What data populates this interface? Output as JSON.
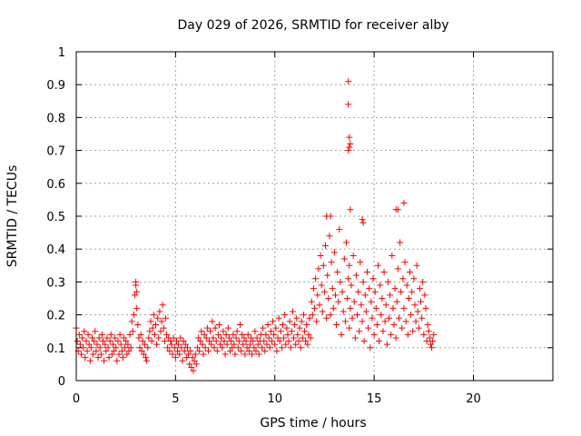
{
  "chart_data": {
    "type": "scatter",
    "title": "Day 029 of 2026, SRMTID for receiver alby",
    "xlabel": "GPS time / hours",
    "ylabel": "SRMTID / TECUs",
    "xlim": [
      0,
      24
    ],
    "ylim": [
      0,
      1
    ],
    "xticks": [
      0,
      5,
      10,
      15,
      20
    ],
    "yticks": [
      0,
      0.1,
      0.2,
      0.3,
      0.4,
      0.5,
      0.6,
      0.7,
      0.8,
      0.9,
      1
    ],
    "grid": true,
    "marker": "+",
    "color": "#ff0000",
    "series": [
      {
        "name": "alby",
        "x": [
          0.0,
          0.05,
          0.1,
          0.15,
          0.2,
          0.25,
          0.3,
          0.35,
          0.4,
          0.45,
          0.5,
          0.55,
          0.6,
          0.65,
          0.7,
          0.75,
          0.8,
          0.85,
          0.9,
          0.95,
          1.0,
          1.05,
          1.1,
          1.15,
          1.2,
          1.25,
          1.3,
          1.35,
          1.4,
          1.45,
          1.5,
          1.55,
          1.6,
          1.65,
          1.7,
          1.75,
          1.8,
          1.85,
          1.9,
          1.95,
          2.0,
          2.05,
          2.1,
          2.15,
          2.2,
          2.25,
          2.3,
          2.35,
          2.4,
          2.45,
          2.5,
          2.55,
          2.6,
          2.65,
          2.7,
          2.75,
          2.8,
          2.85,
          2.9,
          2.95,
          3.0,
          3.0,
          3.05,
          3.05,
          3.1,
          3.15,
          3.2,
          3.25,
          3.3,
          3.35,
          3.4,
          3.45,
          3.5,
          3.55,
          3.6,
          3.65,
          3.7,
          3.75,
          3.8,
          3.85,
          3.9,
          3.95,
          4.0,
          4.05,
          4.1,
          4.15,
          4.2,
          4.25,
          4.3,
          4.35,
          4.4,
          4.45,
          4.5,
          4.55,
          4.6,
          4.65,
          4.7,
          4.75,
          4.8,
          4.85,
          4.9,
          4.95,
          5.0,
          5.05,
          5.1,
          5.15,
          5.2,
          5.25,
          5.3,
          5.35,
          5.4,
          5.45,
          5.5,
          5.55,
          5.6,
          5.65,
          5.7,
          5.75,
          5.8,
          5.85,
          5.9,
          5.95,
          6.0,
          6.05,
          6.1,
          6.15,
          6.2,
          6.25,
          6.3,
          6.35,
          6.4,
          6.45,
          6.5,
          6.55,
          6.6,
          6.65,
          6.7,
          6.75,
          6.8,
          6.85,
          6.9,
          6.95,
          7.0,
          7.05,
          7.1,
          7.15,
          7.2,
          7.25,
          7.3,
          7.35,
          7.4,
          7.45,
          7.5,
          7.55,
          7.6,
          7.65,
          7.7,
          7.75,
          7.8,
          7.85,
          7.9,
          7.95,
          8.0,
          8.05,
          8.1,
          8.15,
          8.2,
          8.25,
          8.3,
          8.35,
          8.4,
          8.45,
          8.5,
          8.55,
          8.6,
          8.65,
          8.7,
          8.75,
          8.8,
          8.85,
          8.9,
          8.95,
          9.0,
          9.05,
          9.1,
          9.15,
          9.2,
          9.25,
          9.3,
          9.35,
          9.4,
          9.45,
          9.5,
          9.55,
          9.6,
          9.65,
          9.7,
          9.75,
          9.8,
          9.85,
          9.9,
          9.95,
          10.0,
          10.05,
          10.1,
          10.15,
          10.2,
          10.25,
          10.3,
          10.35,
          10.4,
          10.45,
          10.5,
          10.55,
          10.6,
          10.65,
          10.7,
          10.75,
          10.8,
          10.85,
          10.9,
          10.95,
          11.0,
          11.05,
          11.1,
          11.15,
          11.2,
          11.25,
          11.3,
          11.35,
          11.4,
          11.45,
          11.5,
          11.55,
          11.6,
          11.65,
          11.7,
          11.75,
          11.8,
          11.85,
          11.9,
          11.95,
          12.0,
          12.05,
          12.1,
          12.15,
          12.2,
          12.25,
          12.3,
          12.35,
          12.4,
          12.45,
          12.5,
          12.55,
          12.6,
          12.65,
          12.7,
          12.75,
          12.8,
          12.85,
          12.9,
          12.95,
          13.0,
          13.05,
          13.1,
          13.15,
          13.2,
          13.25,
          13.3,
          13.35,
          13.4,
          13.45,
          13.5,
          13.55,
          13.6,
          13.65,
          13.7,
          13.75,
          13.75,
          13.8,
          13.85,
          13.9,
          13.95,
          14.0,
          14.05,
          14.1,
          14.15,
          14.2,
          14.25,
          14.3,
          14.35,
          14.4,
          14.45,
          14.5,
          14.55,
          14.6,
          14.65,
          14.7,
          14.75,
          14.8,
          14.85,
          14.9,
          14.95,
          15.0,
          15.05,
          15.1,
          15.15,
          15.2,
          15.25,
          15.3,
          15.35,
          15.4,
          15.45,
          15.5,
          15.55,
          15.6,
          15.65,
          15.7,
          15.75,
          15.8,
          15.85,
          15.9,
          15.95,
          16.0,
          16.05,
          16.1,
          16.15,
          16.2,
          16.25,
          16.3,
          16.35,
          16.4,
          16.45,
          16.5,
          16.55,
          16.6,
          16.65,
          16.7,
          16.75,
          16.8,
          16.85,
          16.9,
          16.95,
          17.0,
          17.05,
          17.1,
          17.15,
          17.2,
          17.25,
          17.3,
          17.35,
          17.4,
          17.45,
          17.5,
          17.55,
          17.6,
          17.65,
          17.7,
          17.75,
          17.8,
          17.85,
          17.9,
          17.95,
          18.0,
          13.7,
          13.7,
          13.75,
          13.8,
          13.75,
          13.7,
          13.8,
          12.6,
          12.8,
          14.4,
          14.45,
          16.1,
          16.2,
          16.5
        ],
        "y": [
          0.16,
          0.12,
          0.09,
          0.14,
          0.11,
          0.08,
          0.13,
          0.1,
          0.15,
          0.07,
          0.12,
          0.09,
          0.14,
          0.11,
          0.06,
          0.1,
          0.13,
          0.08,
          0.12,
          0.15,
          0.09,
          0.11,
          0.07,
          0.13,
          0.1,
          0.08,
          0.14,
          0.12,
          0.06,
          0.11,
          0.09,
          0.13,
          0.1,
          0.07,
          0.12,
          0.14,
          0.08,
          0.11,
          0.09,
          0.13,
          0.1,
          0.06,
          0.12,
          0.08,
          0.14,
          0.11,
          0.09,
          0.07,
          0.13,
          0.1,
          0.12,
          0.08,
          0.11,
          0.09,
          0.14,
          0.1,
          0.18,
          0.15,
          0.2,
          0.26,
          0.3,
          0.29,
          0.27,
          0.22,
          0.17,
          0.13,
          0.1,
          0.14,
          0.09,
          0.12,
          0.08,
          0.11,
          0.07,
          0.06,
          0.1,
          0.13,
          0.15,
          0.18,
          0.12,
          0.16,
          0.2,
          0.14,
          0.17,
          0.11,
          0.19,
          0.13,
          0.21,
          0.15,
          0.18,
          0.23,
          0.16,
          0.12,
          0.19,
          0.14,
          0.1,
          0.13,
          0.09,
          0.12,
          0.11,
          0.08,
          0.13,
          0.1,
          0.07,
          0.12,
          0.09,
          0.11,
          0.08,
          0.13,
          0.1,
          0.06,
          0.12,
          0.09,
          0.11,
          0.07,
          0.1,
          0.08,
          0.05,
          0.09,
          0.04,
          0.07,
          0.03,
          0.06,
          0.08,
          0.05,
          0.1,
          0.13,
          0.09,
          0.12,
          0.15,
          0.11,
          0.08,
          0.14,
          0.1,
          0.13,
          0.16,
          0.09,
          0.12,
          0.15,
          0.11,
          0.18,
          0.13,
          0.1,
          0.16,
          0.12,
          0.09,
          0.14,
          0.17,
          0.11,
          0.13,
          0.1,
          0.15,
          0.12,
          0.08,
          0.14,
          0.11,
          0.16,
          0.13,
          0.09,
          0.12,
          0.1,
          0.14,
          0.11,
          0.08,
          0.13,
          0.15,
          0.1,
          0.12,
          0.17,
          0.09,
          0.14,
          0.11,
          0.13,
          0.08,
          0.12,
          0.1,
          0.14,
          0.09,
          0.11,
          0.13,
          0.08,
          0.12,
          0.1,
          0.15,
          0.09,
          0.13,
          0.11,
          0.08,
          0.12,
          0.14,
          0.1,
          0.16,
          0.12,
          0.09,
          0.14,
          0.11,
          0.17,
          0.13,
          0.1,
          0.15,
          0.12,
          0.18,
          0.14,
          0.11,
          0.16,
          0.09,
          0.13,
          0.19,
          0.12,
          0.15,
          0.1,
          0.17,
          0.13,
          0.2,
          0.11,
          0.16,
          0.14,
          0.12,
          0.18,
          0.1,
          0.15,
          0.21,
          0.13,
          0.17,
          0.11,
          0.19,
          0.14,
          0.12,
          0.16,
          0.1,
          0.18,
          0.13,
          0.2,
          0.15,
          0.12,
          0.17,
          0.11,
          0.14,
          0.19,
          0.13,
          0.24,
          0.2,
          0.28,
          0.22,
          0.31,
          0.18,
          0.26,
          0.34,
          0.23,
          0.38,
          0.29,
          0.21,
          0.35,
          0.27,
          0.41,
          0.19,
          0.32,
          0.25,
          0.44,
          0.2,
          0.36,
          0.28,
          0.22,
          0.39,
          0.26,
          0.17,
          0.33,
          0.24,
          0.46,
          0.3,
          0.14,
          0.27,
          0.21,
          0.37,
          0.18,
          0.42,
          0.25,
          0.31,
          0.16,
          0.35,
          0.22,
          0.29,
          0.19,
          0.38,
          0.24,
          0.13,
          0.32,
          0.2,
          0.27,
          0.15,
          0.36,
          0.23,
          0.18,
          0.3,
          0.12,
          0.26,
          0.21,
          0.33,
          0.16,
          0.28,
          0.1,
          0.24,
          0.19,
          0.31,
          0.14,
          0.27,
          0.22,
          0.17,
          0.35,
          0.12,
          0.29,
          0.2,
          0.25,
          0.15,
          0.33,
          0.18,
          0.23,
          0.11,
          0.3,
          0.19,
          0.26,
          0.14,
          0.38,
          0.22,
          0.17,
          0.28,
          0.13,
          0.24,
          0.34,
          0.19,
          0.42,
          0.27,
          0.16,
          0.31,
          0.22,
          0.36,
          0.18,
          0.29,
          0.14,
          0.25,
          0.33,
          0.2,
          0.27,
          0.15,
          0.31,
          0.23,
          0.18,
          0.35,
          0.21,
          0.16,
          0.28,
          0.24,
          0.19,
          0.3,
          0.14,
          0.26,
          0.22,
          0.12,
          0.17,
          0.15,
          0.13,
          0.11,
          0.1,
          0.12,
          0.14,
          0.91,
          0.84,
          0.74,
          0.72,
          0.71,
          0.7,
          0.52,
          0.5,
          0.5,
          0.49,
          0.48,
          0.52,
          0.52,
          0.54
        ]
      }
    ]
  }
}
